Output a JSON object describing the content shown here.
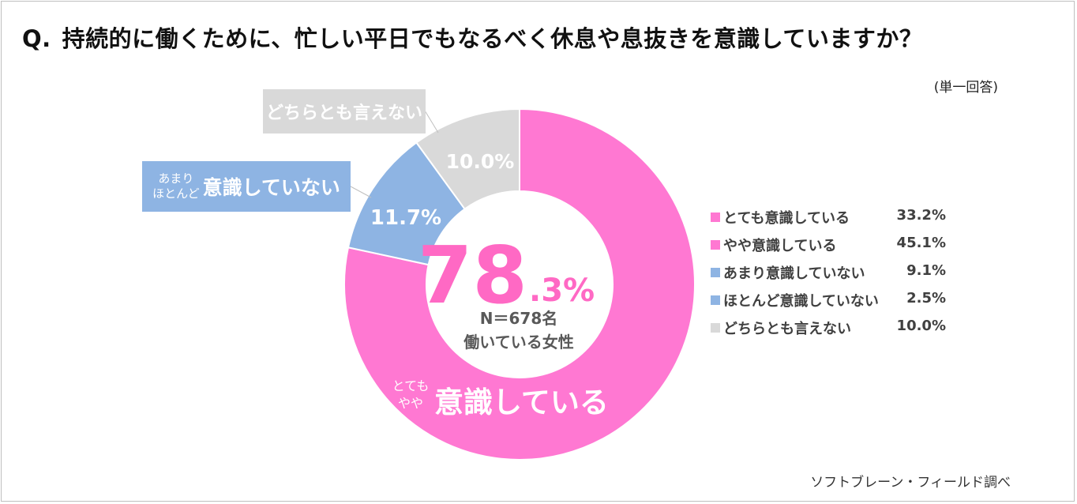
{
  "title": {
    "q": "Q.",
    "text": "持続的に働くために、忙しい平日でもなるべく休息や息抜きを意識していますか？"
  },
  "note": "(単一回答)",
  "credit": "ソフトブレーン・フィールド調べ",
  "colors": {
    "pink": "#ff78d2",
    "blue": "#8eb4e3",
    "gray": "#d9d9d9",
    "center_pink": "#ff69c4"
  },
  "chart_data": {
    "type": "pie",
    "donut": true,
    "slices": [
      {
        "label": "とても意識している",
        "value": 33.2,
        "color": "#ff78d2"
      },
      {
        "label": "やや意識している",
        "value": 45.1,
        "color": "#ff78d2"
      },
      {
        "label": "あまり意識していない",
        "value": 9.1,
        "color": "#8eb4e3"
      },
      {
        "label": "ほとんど意識していない",
        "value": 2.5,
        "color": "#8eb4e3"
      },
      {
        "label": "どちらとも言えない",
        "value": 10.0,
        "color": "#d9d9d9"
      }
    ],
    "legend_values": [
      "33.2%",
      "45.1%",
      "9.1%",
      "2.5%",
      "10.0%"
    ],
    "data_labels": {
      "blue": "11.7%",
      "gray": "10.0%"
    },
    "center": {
      "big": "78",
      "small": ".3%",
      "n": "N＝678名",
      "group": "働いている女性"
    },
    "pink_label": {
      "small1": "とても",
      "small2": "やや",
      "big": "意識している"
    },
    "legend_position": "right"
  },
  "callouts": {
    "gray": "どちらとも言えない",
    "blue_small1": "あまり",
    "blue_small2": "ほとんど",
    "blue_big": "意識していない"
  }
}
